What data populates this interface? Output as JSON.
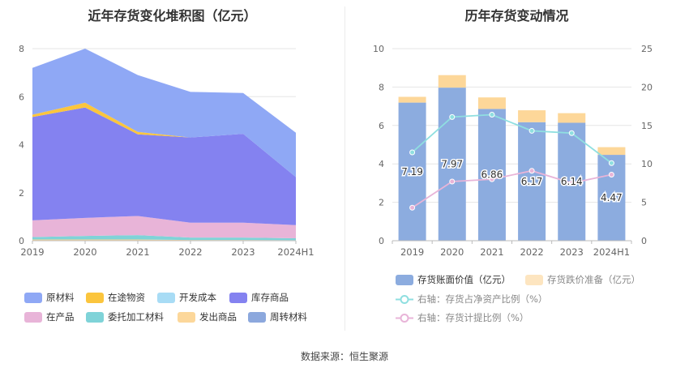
{
  "left_panel": {
    "title": "近年存货变化堆积图（亿元）",
    "legend": [
      {
        "label": "原材料",
        "color": "#8fa8f5"
      },
      {
        "label": "在途物资",
        "color": "#fbc53d"
      },
      {
        "label": "开发成本",
        "color": "#a8dcf5"
      },
      {
        "label": "库存商品",
        "color": "#8482f0"
      },
      {
        "label": "在产品",
        "color": "#e8b4d8"
      },
      {
        "label": "委托加工材料",
        "color": "#7fd3d8"
      },
      {
        "label": "发出商品",
        "color": "#fcd79a"
      },
      {
        "label": "周转材料",
        "color": "#8ca8dd"
      }
    ]
  },
  "right_panel": {
    "title": "历年存货变动情况",
    "legend": [
      {
        "label": "存货账面价值（亿元）",
        "color": "#8cacdf"
      },
      {
        "label": "存货跌价准备（亿元）",
        "color": "#fde5c0"
      },
      {
        "label": "右轴：存货占净资产比例（%）",
        "color": "#8fdfe0"
      },
      {
        "label": "右轴：存货计提比例（%）",
        "color": "#e8b4d8"
      }
    ]
  },
  "source": "数据来源：恒生聚源",
  "chart_data": [
    {
      "type": "area",
      "stacked": true,
      "title": "近年存货变化堆积图（亿元）",
      "x": [
        "2019",
        "2020",
        "2021",
        "2022",
        "2023",
        "2024H1"
      ],
      "ylim": [
        0,
        8
      ],
      "yticks": [
        0,
        2,
        4,
        6,
        8
      ],
      "grid": true,
      "legend_position": "bottom",
      "series": [
        {
          "name": "发出商品",
          "color": "#fcd79a",
          "values": [
            0.05,
            0.05,
            0.05,
            0.03,
            0.03,
            0.02
          ]
        },
        {
          "name": "委托加工材料",
          "color": "#7fd3d8",
          "values": [
            0.1,
            0.15,
            0.18,
            0.1,
            0.1,
            0.08
          ]
        },
        {
          "name": "开发成本",
          "color": "#a8dcf5",
          "values": [
            0.0,
            0.0,
            0.0,
            0.0,
            0.0,
            0.0
          ]
        },
        {
          "name": "在产品",
          "color": "#e8b4d8",
          "values": [
            0.7,
            0.75,
            0.8,
            0.62,
            0.62,
            0.55
          ]
        },
        {
          "name": "库存商品",
          "color": "#8482f0",
          "values": [
            4.3,
            4.6,
            3.4,
            3.55,
            3.7,
            2.0
          ]
        },
        {
          "name": "在途物资",
          "color": "#fbc53d",
          "values": [
            0.1,
            0.2,
            0.1,
            0.0,
            0.0,
            0.0
          ]
        },
        {
          "name": "周转材料",
          "color": "#8ca8dd",
          "values": [
            0.0,
            0.0,
            0.0,
            0.0,
            0.0,
            0.0
          ]
        },
        {
          "name": "原材料",
          "color": "#8fa8f5",
          "values": [
            1.95,
            2.25,
            2.37,
            1.9,
            1.7,
            1.85
          ]
        }
      ]
    },
    {
      "type": "bar",
      "stacked": true,
      "title": "历年存货变动情况",
      "categories": [
        "2019",
        "2020",
        "2021",
        "2022",
        "2023",
        "2024H1"
      ],
      "ylim": [
        0,
        10
      ],
      "yticks": [
        0,
        2,
        4,
        6,
        8,
        10
      ],
      "y2lim": [
        0,
        25
      ],
      "y2ticks": [
        0,
        5,
        10,
        15,
        20,
        25
      ],
      "grid": true,
      "legend_position": "bottom",
      "series": [
        {
          "name": "存货账面价值（亿元）",
          "axis": "left",
          "type": "bar",
          "color": "#8cacdf",
          "values": [
            7.19,
            7.97,
            6.86,
            6.17,
            6.14,
            4.47
          ],
          "labels": [
            "7.19",
            "7.97",
            "6.86",
            "6.17",
            "6.14",
            "4.47"
          ]
        },
        {
          "name": "存货跌价准备（亿元）",
          "axis": "left",
          "type": "bar",
          "color": "#fdd799",
          "values": [
            0.3,
            0.65,
            0.6,
            0.62,
            0.5,
            0.4
          ]
        },
        {
          "name": "右轴：存货占净资产比例（%）",
          "axis": "right",
          "type": "line",
          "color": "#8fdfe0",
          "values": [
            11.5,
            16.1,
            16.4,
            14.3,
            14.0,
            10.1
          ]
        },
        {
          "name": "右轴：存货计提比例（%）",
          "axis": "right",
          "type": "line",
          "color": "#e8b4d8",
          "values": [
            4.3,
            7.7,
            8.0,
            9.1,
            7.5,
            8.6
          ]
        }
      ]
    }
  ]
}
